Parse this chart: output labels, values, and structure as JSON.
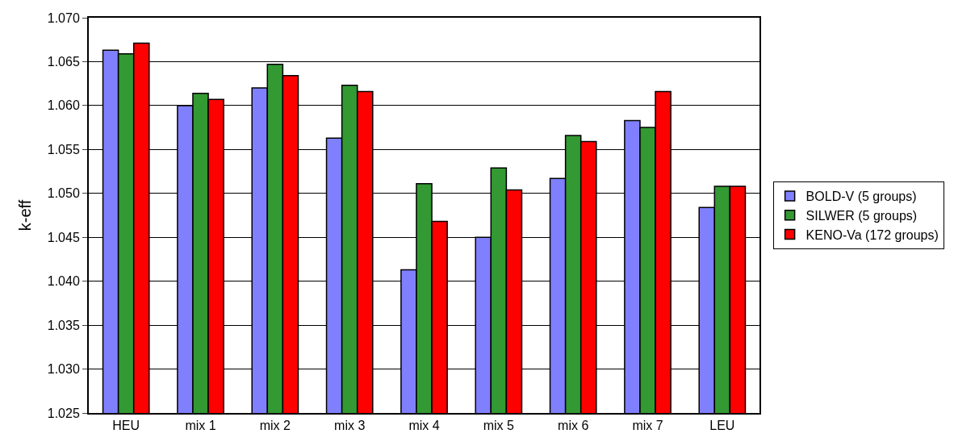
{
  "chart_data": {
    "type": "bar",
    "ylabel": "k-eff",
    "categories": [
      "HEU",
      "mix 1",
      "mix 2",
      "mix 3",
      "mix 4",
      "mix 5",
      "mix 6",
      "mix 7",
      "LEU"
    ],
    "series": [
      {
        "name": "BOLD-V (5 groups)",
        "color": "#8080ff",
        "values": [
          1.0663,
          1.06,
          1.062,
          1.0563,
          1.0413,
          1.045,
          1.0517,
          1.0583,
          1.0484
        ]
      },
      {
        "name": "SILWER (5 groups)",
        "color": "#339933",
        "values": [
          1.0659,
          1.0614,
          1.0647,
          1.0623,
          1.0511,
          1.0529,
          1.0566,
          1.0575,
          1.0508
        ]
      },
      {
        "name": "KENO-Va (172 groups)",
        "color": "#ff0000",
        "values": [
          1.0671,
          1.0607,
          1.0634,
          1.0616,
          1.0468,
          1.0504,
          1.0559,
          1.0616,
          1.0508
        ]
      }
    ],
    "ylim": [
      1.025,
      1.07
    ],
    "yticks": [
      {
        "value": 1.025,
        "label": "1.025"
      },
      {
        "value": 1.03,
        "label": "1.030"
      },
      {
        "value": 1.035,
        "label": "1.035"
      },
      {
        "value": 1.04,
        "label": "1.040"
      },
      {
        "value": 1.045,
        "label": "1.045"
      },
      {
        "value": 1.05,
        "label": "1.050"
      },
      {
        "value": 1.055,
        "label": "1.055"
      },
      {
        "value": 1.06,
        "label": "1.060"
      },
      {
        "value": 1.065,
        "label": "1.065"
      },
      {
        "value": 1.07,
        "label": "1.070"
      }
    ],
    "grid": "y",
    "legend": "right"
  }
}
